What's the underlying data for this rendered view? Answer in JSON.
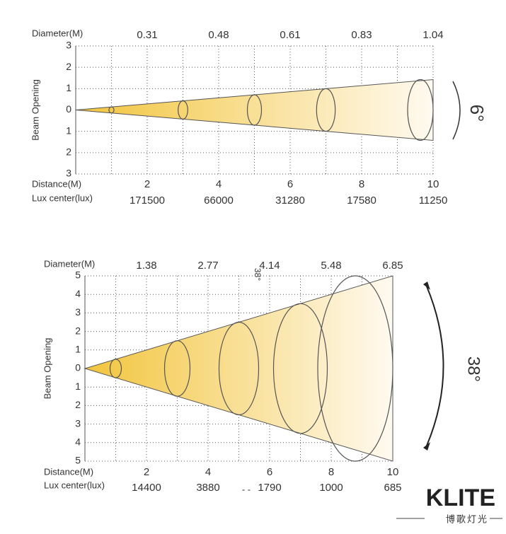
{
  "top": {
    "diameter_label": "Diameter(M)",
    "diameters": [
      "0.31",
      "0.48",
      "0.61",
      "0.83",
      "1.04"
    ],
    "y_axis_label": "Beam Opening",
    "y_labels": [
      "3",
      "2",
      "1",
      "0",
      "1",
      "2",
      "3"
    ],
    "distance_label": "Distance(M)",
    "distances": [
      "2",
      "4",
      "6",
      "8",
      "10"
    ],
    "lux_label": "Lux center(lux)",
    "lux": [
      "171500",
      "66000",
      "31280",
      "17580",
      "11250"
    ],
    "angle": "6°"
  },
  "bottom": {
    "diameter_label": "Diameter(M)",
    "diameters": [
      "1.38",
      "2.77",
      "4.14",
      "5.48",
      "6.85"
    ],
    "y_axis_label": "Beam Opening",
    "y_labels": [
      "5",
      "4",
      "3",
      "2",
      "1",
      "0",
      "1",
      "2",
      "3",
      "4",
      "5"
    ],
    "distance_label": "Distance(M)",
    "distances": [
      "2",
      "4",
      "6",
      "8",
      "10"
    ],
    "lux_label": "Lux center(lux)",
    "lux": [
      "14400",
      "3880",
      "1790",
      "1000",
      "685"
    ],
    "angle": "38°",
    "angle_small": "38°",
    "separator": "- -"
  },
  "logo": {
    "brand": "KLITE",
    "tagline": "博歌灯光"
  }
}
